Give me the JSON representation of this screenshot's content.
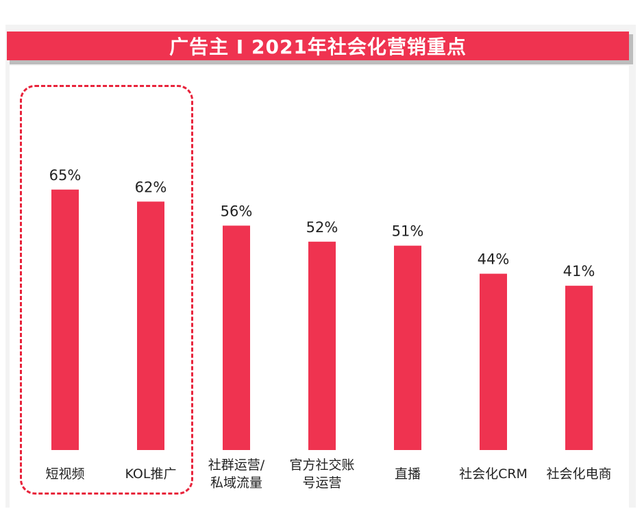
{
  "title": "广告主 I 2021年社会化营销重点",
  "colors": {
    "bar": "#ef3350",
    "title_bg": "#ef3350",
    "highlight": "#e8233b"
  },
  "chart_data": {
    "type": "bar",
    "title": "广告主 I 2021年社会化营销重点",
    "categories": [
      [
        "短视频"
      ],
      [
        "KOL推广"
      ],
      [
        "社群运营/",
        "私域流量"
      ],
      [
        "官方社交账",
        "号运营"
      ],
      [
        "直播"
      ],
      [
        "社会化CRM"
      ],
      [
        "社会化电商"
      ]
    ],
    "values": [
      65,
      62,
      56,
      52,
      51,
      44,
      41
    ],
    "value_labels": [
      "65%",
      "62%",
      "56%",
      "52%",
      "51%",
      "44%",
      "41%"
    ],
    "unit": "%",
    "ylim": [
      0,
      100
    ],
    "grid": false,
    "legend": "none",
    "highlighted_categories": [
      "短视频",
      "KOL推广"
    ]
  }
}
